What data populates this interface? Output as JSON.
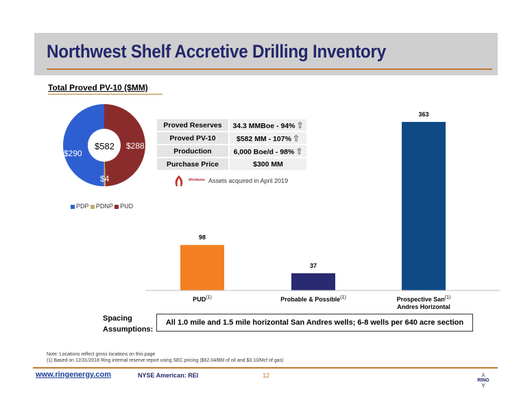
{
  "header": {
    "title": "Northwest Shelf Accretive Drilling Inventory"
  },
  "subtitle": "Total Proved PV-10 ($MM)",
  "pie": {
    "center_label": "$582",
    "labels": {
      "pdp": "$290",
      "pud": "$288",
      "pdnp": "$4"
    },
    "values": {
      "pdp": 290,
      "pdnp": 4,
      "pud": 288
    },
    "colors": {
      "pdp": "#2e5fd1",
      "pdnp": "#c8a86b",
      "pud": "#8b2c2c"
    },
    "legend": [
      "PDP",
      "PDNP",
      "PUD"
    ]
  },
  "stats": [
    {
      "label": "Proved Reserves",
      "value": "34.3 MMBoe - 94%",
      "arrow": "⇧"
    },
    {
      "label": "Proved PV-10",
      "value": "$582 MM - 107%",
      "arrow": "⇧"
    },
    {
      "label": "Production",
      "value": "6,000 Boe/d - 98%",
      "arrow": "⇧"
    },
    {
      "label": "Purchase Price",
      "value": "$300 MM",
      "arrow": ""
    }
  ],
  "acquired": {
    "logo_text": "Wishbone",
    "text": "Assets acquired in April 2019"
  },
  "chart_data": {
    "type": "bar",
    "categories": [
      "PUD",
      "Probable & Possible",
      "Prospective San Andres Horizontal"
    ],
    "category_lines": [
      [
        "PUD"
      ],
      [
        "Probable & Possible"
      ],
      [
        "Prospective San",
        "Andres Horizontal"
      ]
    ],
    "superscript": "(1)",
    "values": [
      98,
      37,
      363
    ],
    "colors": [
      "#f28022",
      "#2a2a72",
      "#0f4a85"
    ],
    "ylim": [
      0,
      380
    ]
  },
  "spacing": {
    "label_lines": [
      "Spacing",
      "Assumptions:"
    ],
    "text": "All 1.0 mile and 1.5 mile horizontal San Andres wells; 6-8 wells per 640 acre section"
  },
  "notes": [
    "Note: Locations reflect gross locations on this page",
    "(1) Based on 12/31/2018 Ring internal reserve report using SEC pricing ($62.04/Bbl of oil and $3.10/Mcf of gas)"
  ],
  "footer": {
    "url": "www.ringenergy.com",
    "ticker": "NYSE American: REI",
    "page": "12",
    "logo_text": "RING"
  }
}
